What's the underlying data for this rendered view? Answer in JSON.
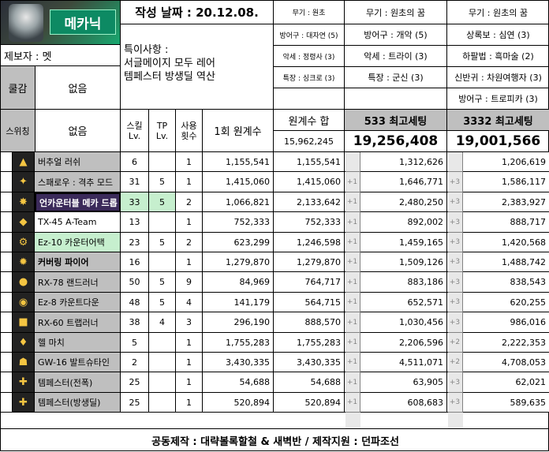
{
  "header": {
    "date_label": "작성 날짜 : 20.12.08.",
    "job_name": "메카닉",
    "contributor": "제보자 : 멧",
    "notes_title": "특이사항 :",
    "notes_lines": [
      "서글메이지 모두 레어",
      "템페스터 방생딜 역산"
    ],
    "cooldown_label": "쿨감",
    "cooldown_value": "없음",
    "switching_label": "스위칭",
    "switching_value": "없음"
  },
  "gear": {
    "col1": [
      "무기 : 원초",
      "방어구 : 대자연 (5)",
      "악세 : 정령사 (3)",
      "특장 : 싱크로 (3)"
    ],
    "col2": [
      "무기 : 원초의 꿈",
      "방어구 : 개악 (5)",
      "악세 : 트라이 (3)",
      "특장 : 군신 (3)"
    ],
    "col3": [
      "무기 : 원초의 꿈",
      "상록보 : 심연 (3)",
      "하팔법 : 흑마술 (2)",
      "신반귀 : 차원여행자 (3)",
      "방어구 : 트로피카 (3)"
    ]
  },
  "table": {
    "col_skill_lv": "스킬 Lv.",
    "col_tp_lv": "TP Lv.",
    "col_uses": "사용 횟수",
    "col_base_once": "1회 원계수",
    "col_base_total": "원계수 합",
    "base_total_sum": "15,962,245",
    "col_set533": "533 최고세팅",
    "set533_total": "19,256,408",
    "col_set3332": "3332 최고세팅",
    "set3332_total": "19,001,566",
    "rows": [
      {
        "icon": "buster-rush-icon",
        "glyph": "▲",
        "name": "버추얼 러쉬",
        "lv": "6",
        "tp": "",
        "uses": "1",
        "once": "1,155,541",
        "total": "1,155,541",
        "p1": "",
        "v1": "1,312,626",
        "p2": "",
        "v2": "1,206,619",
        "style": "grey"
      },
      {
        "icon": "spitfire-icon",
        "glyph": "✦",
        "name": "스패로우 : 격추 모드",
        "lv": "31",
        "tp": "5",
        "uses": "1",
        "once": "1,415,060",
        "total": "1,415,060",
        "p1": "+1",
        "v1": "1,646,771",
        "p2": "+3",
        "v2": "1,586,117",
        "style": "grey"
      },
      {
        "icon": "encounter-icon",
        "glyph": "✸",
        "name": "언카운터블 메카 드롭",
        "lv": "33",
        "tp": "5",
        "uses": "2",
        "once": "1,066,821",
        "total": "2,133,642",
        "p1": "+1",
        "v1": "2,480,250",
        "p2": "+3",
        "v2": "2,383,927",
        "style": "purple"
      },
      {
        "icon": "a-team-icon",
        "glyph": "◆",
        "name": "TX-45 A-Team",
        "lv": "13",
        "tp": "",
        "uses": "1",
        "once": "752,333",
        "total": "752,333",
        "p1": "+1",
        "v1": "892,002",
        "p2": "+3",
        "v2": "888,717",
        "style": "plain"
      },
      {
        "icon": "counter-attack-icon",
        "glyph": "⚙",
        "name": "Ez-10 카운터어택",
        "lv": "23",
        "tp": "5",
        "uses": "2",
        "once": "623,299",
        "total": "1,246,598",
        "p1": "+1",
        "v1": "1,459,165",
        "p2": "+3",
        "v2": "1,420,568",
        "style": "green"
      },
      {
        "icon": "covering-fire-icon",
        "glyph": "✹",
        "name": "커버링 파이어",
        "lv": "16",
        "tp": "",
        "uses": "1",
        "once": "1,279,870",
        "total": "1,279,870",
        "p1": "+1",
        "v1": "1,509,126",
        "p2": "+3",
        "v2": "1,488,742",
        "style": "grey"
      },
      {
        "icon": "land-runner-icon",
        "glyph": "●",
        "name": "RX-78 랜드러너",
        "lv": "50",
        "tp": "5",
        "uses": "9",
        "once": "84,969",
        "total": "764,717",
        "p1": "+1",
        "v1": "883,186",
        "p2": "+3",
        "v2": "838,543",
        "style": "grey"
      },
      {
        "icon": "countdown-icon",
        "glyph": "◉",
        "name": "Ez-8 카운트다운",
        "lv": "48",
        "tp": "5",
        "uses": "4",
        "once": "141,179",
        "total": "564,715",
        "p1": "+1",
        "v1": "652,571",
        "p2": "+3",
        "v2": "620,255",
        "style": "grey"
      },
      {
        "icon": "trap-runner-icon",
        "glyph": "■",
        "name": "RX-60 트랩러너",
        "lv": "38",
        "tp": "4",
        "uses": "3",
        "once": "296,190",
        "total": "888,570",
        "p1": "+1",
        "v1": "1,030,456",
        "p2": "+3",
        "v2": "986,016",
        "style": "grey"
      },
      {
        "icon": "hell-march-icon",
        "glyph": "♦",
        "name": "헬 마치",
        "lv": "5",
        "tp": "",
        "uses": "1",
        "once": "1,755,283",
        "total": "1,755,283",
        "p1": "+1",
        "v1": "2,206,596",
        "p2": "+2",
        "v2": "2,222,353",
        "style": "grey"
      },
      {
        "icon": "valtrushtine-icon",
        "glyph": "☗",
        "name": "GW-16 발트슈타인",
        "lv": "2",
        "tp": "",
        "uses": "1",
        "once": "3,430,335",
        "total": "3,430,335",
        "p1": "+1",
        "v1": "4,511,071",
        "p2": "+2",
        "v2": "4,708,053",
        "style": "grey"
      },
      {
        "icon": "tempester-icon",
        "glyph": "✚",
        "name": "템페스터(전폭)",
        "lv": "25",
        "tp": "",
        "uses": "1",
        "once": "54,688",
        "total": "54,688",
        "p1": "+1",
        "v1": "63,905",
        "p2": "+3",
        "v2": "62,021",
        "style": "grey"
      },
      {
        "icon": "tempester-release-icon",
        "glyph": "✚",
        "name": "템페스터(방생딜)",
        "lv": "25",
        "tp": "",
        "uses": "1",
        "once": "520,894",
        "total": "520,894",
        "p1": "+1",
        "v1": "608,683",
        "p2": "+3",
        "v2": "589,635",
        "style": "grey"
      }
    ]
  },
  "footer": "공동제작 : 대략볼록할철 & 새벽반 / 제작지원 : 던파조선"
}
